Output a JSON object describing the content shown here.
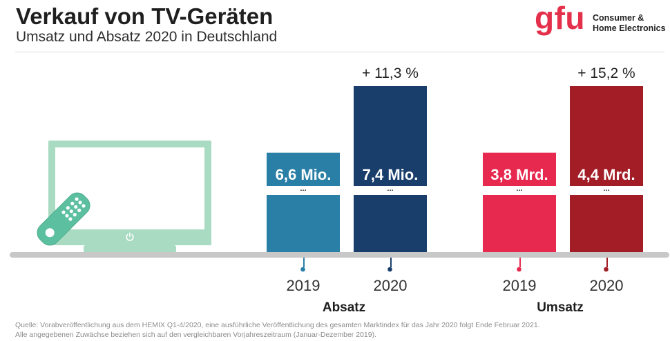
{
  "chart_data": {
    "type": "bar",
    "title": "Verkauf von TV-Geräten",
    "subtitle": "Umsatz und Absatz 2020 in Deutschland",
    "categories": [
      "2019",
      "2020"
    ],
    "series": [
      {
        "name": "Absatz",
        "values": [
          6.6,
          7.4
        ],
        "value_labels": [
          "6,6 Mio.",
          "7,4 Mio."
        ],
        "change_label": "+ 11,3 %",
        "colors": [
          "#2a7fa6",
          "#1a3e6c"
        ]
      },
      {
        "name": "Umsatz",
        "values": [
          3.8,
          4.4
        ],
        "value_labels": [
          "3,8 Mrd.",
          "4,4 Mrd."
        ],
        "change_label": "+ 15,2 %",
        "colors": [
          "#e7294f",
          "#a21d26"
        ]
      }
    ],
    "axis_break_marker": "...",
    "axis_broken": true,
    "grid": false
  },
  "logo": {
    "wordmark": "gfu",
    "line1": "Consumer &",
    "line2": "Home Electronics",
    "color": "#e4304b"
  },
  "illustration": {
    "tv_icon": "tv-icon",
    "power_icon": "power-icon",
    "remote_icon": "remote-control-icon",
    "tv_color": "#a8dbc1",
    "remote_color": "#5cbf9f"
  },
  "footer": {
    "source": "Quelle: Vorabveröffentlichung aus dem HEMIX Q1-4/2020, eine ausführliche Veröffentlichung des gesamten Marktindex für das Jahr 2020 folgt Ende Februar 2021.",
    "note": "Alle angegebenen Zuwächse beziehen sich auf den vergleichbaren Vorjahreszeitraum (Januar-Dezember 2019)."
  }
}
